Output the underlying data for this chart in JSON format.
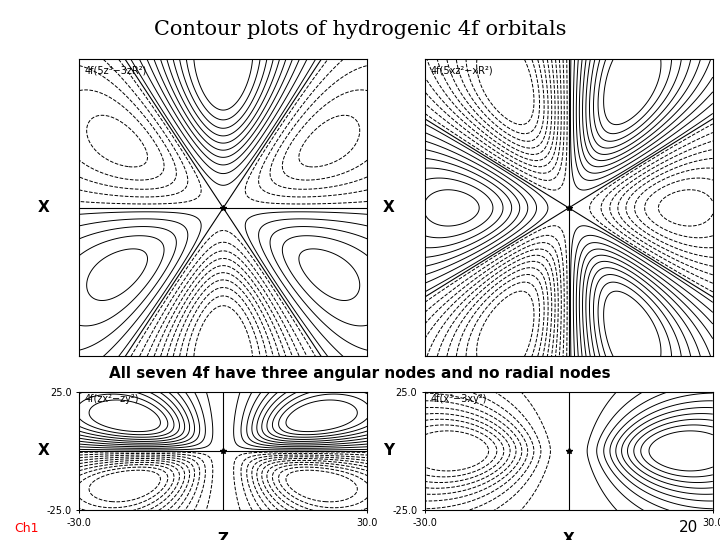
{
  "title": "Contour plots of hydrogenic 4f orbitals",
  "title_bg": "#F2C12E",
  "subtitle": "All seven 4f have three angular nodes and no radial nodes",
  "subtitle_bg": "#8BB8C8",
  "background_color": "#FFFFFF",
  "panel_labels": [
    "4f(5z³−3zR²)",
    "4f(5xz²−xR²)",
    "4f(zx²−zy²)",
    "4f(x³−3xy²)"
  ],
  "axis_labels_left": [
    "X",
    "X",
    "X",
    "Y"
  ],
  "axis_labels_bottom": [
    "",
    "",
    "Z",
    "X"
  ],
  "xlim": [
    -30,
    30
  ],
  "ylim": [
    -25,
    25
  ],
  "ch1_label": "Ch1",
  "page_number": "20"
}
